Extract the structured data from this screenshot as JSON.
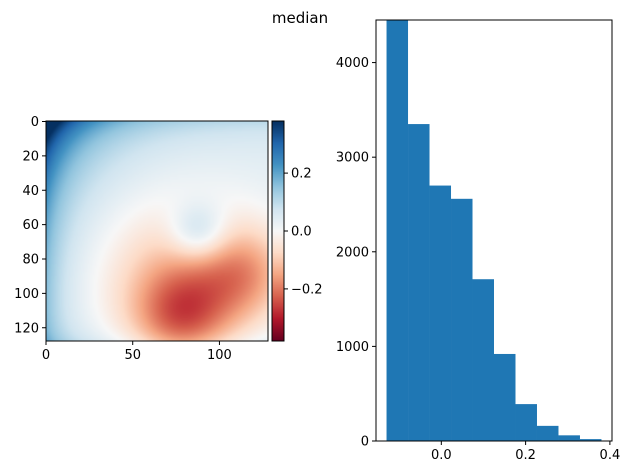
{
  "figure": {
    "suptitle": "median"
  },
  "chart_data": [
    {
      "type": "heatmap",
      "colormap": "RdBu",
      "x_ticks": [
        "0",
        "50",
        "100"
      ],
      "y_ticks": [
        "0",
        "20",
        "40",
        "60",
        "80",
        "100",
        "120"
      ],
      "xlim": [
        0,
        128
      ],
      "ylim": [
        128,
        0
      ],
      "colorbar": {
        "ticks": [
          "0.2",
          "0.0",
          "−0.2"
        ],
        "tick_values": [
          0.2,
          0.0,
          -0.2
        ],
        "range": [
          -0.38,
          0.38
        ]
      },
      "field_features": {
        "top_left_corner_value": 0.34,
        "left_edge_value": 0.16,
        "center_low_region_value": -0.12,
        "bright_spot_center": [
          88,
          65
        ],
        "bright_spot_value": 0.0,
        "low_lobes": [
          {
            "center": [
              78,
              115
            ],
            "value": -0.2
          },
          {
            "center": [
              115,
              88
            ],
            "value": -0.18
          }
        ]
      }
    },
    {
      "type": "bar",
      "subtype": "histogram",
      "bin_edges": [
        -0.13,
        -0.079,
        -0.028,
        0.023,
        0.074,
        0.125,
        0.176,
        0.227,
        0.278,
        0.329,
        0.38
      ],
      "values": [
        4500,
        3350,
        2700,
        2560,
        1710,
        920,
        390,
        160,
        60,
        20
      ],
      "color": "#1f77b4",
      "x_ticks": [
        "0.0",
        "0.2",
        "0.4"
      ],
      "y_ticks": [
        "0",
        "1000",
        "2000",
        "3000",
        "4000"
      ],
      "xlim": [
        -0.155,
        0.405
      ],
      "ylim": [
        0,
        4450
      ]
    }
  ]
}
